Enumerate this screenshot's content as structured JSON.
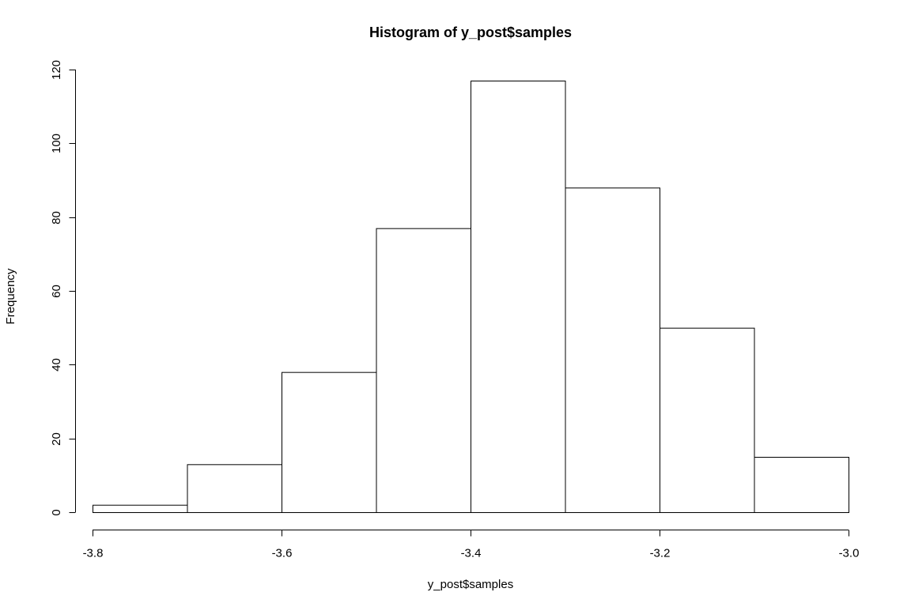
{
  "chart_data": {
    "type": "bar",
    "title": "Histogram of y_post$samples",
    "xlabel": "y_post$samples",
    "ylabel": "Frequency",
    "bin_edges": [
      -3.8,
      -3.7,
      -3.6,
      -3.5,
      -3.4,
      -3.3,
      -3.2,
      -3.1,
      -3.0
    ],
    "values": [
      2,
      13,
      38,
      77,
      117,
      88,
      50,
      15
    ],
    "xlim": [
      -3.8,
      -3.0
    ],
    "ylim": [
      0,
      120
    ],
    "x_ticks": [
      "-3.8",
      "-3.6",
      "-3.4",
      "-3.2",
      "-3.0"
    ],
    "y_ticks": [
      "0",
      "20",
      "40",
      "60",
      "80",
      "100",
      "120"
    ],
    "grid": false,
    "legend": "none",
    "colors": {
      "bar_fill": "#ffffff",
      "bar_stroke": "#000000",
      "axis": "#000000",
      "background": "#ffffff"
    }
  }
}
